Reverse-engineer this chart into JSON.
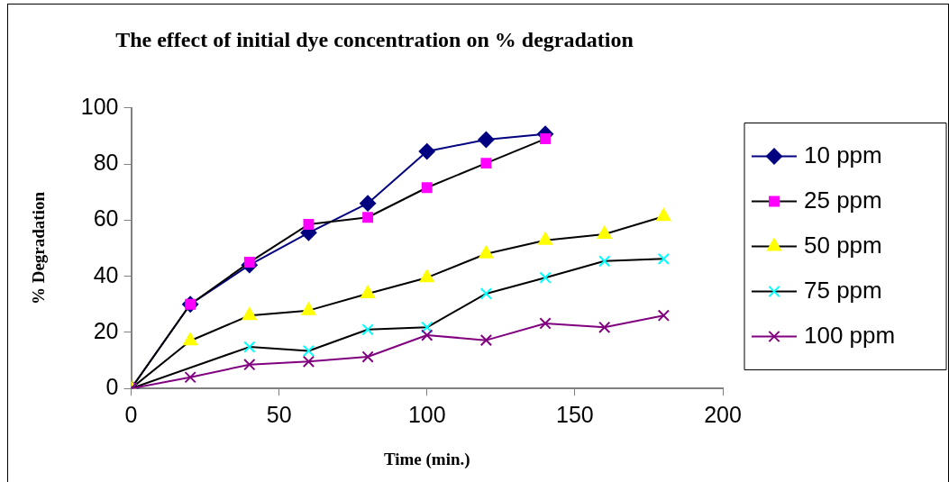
{
  "chart_data": {
    "type": "line",
    "title": "The effect of initial dye concentration on % degradation",
    "xlabel": "Time (min.)",
    "ylabel": "% Degradation",
    "x": [
      0,
      20,
      40,
      60,
      80,
      100,
      120,
      140,
      160,
      180
    ],
    "xlim": [
      0,
      200
    ],
    "xticks": [
      0,
      50,
      100,
      150,
      200
    ],
    "ylim": [
      0,
      100
    ],
    "yticks": [
      0,
      20,
      40,
      60,
      80,
      100
    ],
    "grid": false,
    "legend": "right",
    "line_style": "solid",
    "series": [
      {
        "name": "10 ppm",
        "color": "#000080",
        "marker": "diamond",
        "values": [
          0,
          30,
          44,
          55.5,
          66,
          84.5,
          88.7,
          90.7,
          null,
          null
        ]
      },
      {
        "name": "25 ppm",
        "color": "#000000",
        "colors": [
          "#ff00ff",
          "#ff00ff",
          "#ff00ff",
          "#ff00ff",
          "#ff00ff",
          "#ff00ff",
          "#ff00ff",
          "#ff00ff",
          "#ff00ff",
          "#ff00ff"
        ],
        "marker": "square",
        "values": [
          0,
          30,
          45,
          58.5,
          61,
          71.6,
          80.3,
          89,
          null,
          null
        ]
      },
      {
        "name": "50 ppm",
        "color": "#000000",
        "colors": [
          "#ffff00",
          "#ffff00",
          "#ffff00",
          "#ffff00",
          "#ffff00",
          "#ffff00",
          "#ffff00",
          "#ffff00",
          "#ffff00",
          "#ffff00"
        ],
        "marker": "triangle",
        "values": [
          0,
          17,
          26,
          27.8,
          33.8,
          39.5,
          48,
          52.8,
          55,
          61.3
        ]
      },
      {
        "name": "75 ppm",
        "color": "#000000",
        "colors": [
          "#00ffff",
          "#00ffff",
          "#00ffff",
          "#00ffff",
          "#00ffff",
          "#00ffff",
          "#00ffff",
          "#00ffff",
          "#00ffff",
          "#00ffff"
        ],
        "marker": "cross",
        "values": [
          0,
          null,
          14.8,
          13.4,
          21,
          21.8,
          33.8,
          39.5,
          45.4,
          46.2
        ]
      },
      {
        "name": "100 ppm",
        "color": "#800080",
        "marker": "cross",
        "values": [
          0,
          4,
          8.5,
          9.6,
          11.3,
          19,
          17.2,
          23.2,
          21.8,
          26
        ]
      }
    ]
  }
}
